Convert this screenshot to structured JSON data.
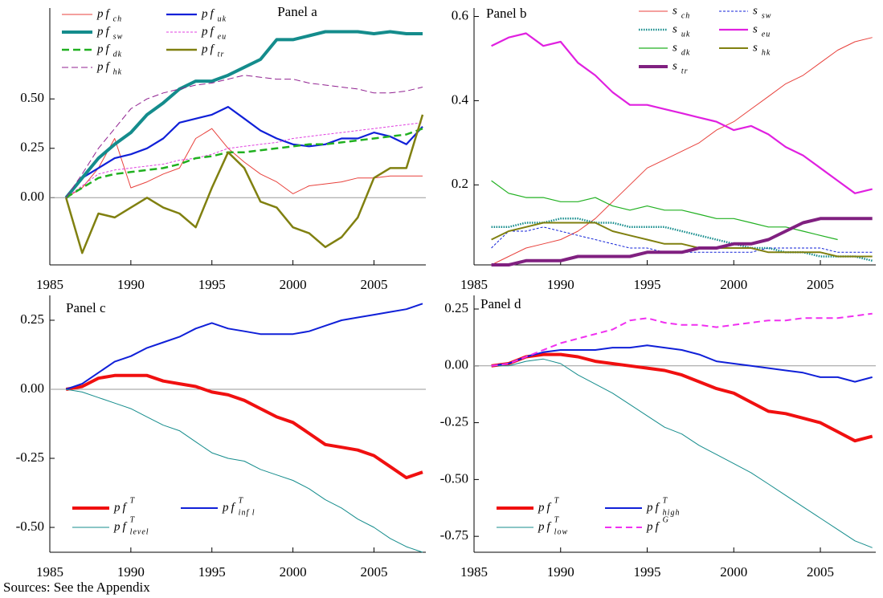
{
  "chart_data": [
    {
      "type": "line",
      "title": "Panel a",
      "legend": "upper left",
      "zero_line": true,
      "x": [
        1986,
        1987,
        1988,
        1989,
        1990,
        1991,
        1992,
        1993,
        1994,
        1995,
        1996,
        1997,
        1998,
        1999,
        2000,
        2001,
        2002,
        2003,
        2004,
        2005,
        2006,
        2007,
        2008
      ],
      "xlim": [
        1985,
        2008.2
      ],
      "xticks": [
        1985,
        1990,
        1995,
        2000,
        2005
      ],
      "ylim": [
        -0.34,
        0.96
      ],
      "yticks": [
        {
          "value": 0,
          "label": "0.00"
        },
        {
          "value": 0.25,
          "label": "0.25"
        },
        {
          "value": 0.5,
          "label": "0.50"
        }
      ],
      "series": [
        {
          "name": "pf",
          "sub": "ch",
          "color": "#e8413c",
          "width": 1,
          "dash": "none",
          "values": [
            0,
            0.05,
            0.15,
            0.3,
            0.05,
            0.08,
            0.12,
            0.15,
            0.3,
            0.35,
            0.25,
            0.18,
            0.12,
            0.08,
            0.02,
            0.06,
            0.07,
            0.08,
            0.1,
            0.1,
            0.11,
            0.11,
            0.11
          ]
        },
        {
          "name": "pf",
          "sub": "uk",
          "color": "#1020d8",
          "width": 2.2,
          "dash": "none",
          "values": [
            0,
            0.1,
            0.15,
            0.2,
            0.22,
            0.25,
            0.3,
            0.38,
            0.4,
            0.42,
            0.46,
            0.4,
            0.34,
            0.3,
            0.27,
            0.26,
            0.27,
            0.3,
            0.3,
            0.33,
            0.31,
            0.27,
            0.36
          ]
        },
        {
          "name": "pf",
          "sub": "sw",
          "color": "#148c8c",
          "width": 4,
          "dash": "none",
          "values": [
            0,
            0.1,
            0.2,
            0.27,
            0.33,
            0.42,
            0.48,
            0.55,
            0.59,
            0.59,
            0.62,
            0.66,
            0.7,
            0.8,
            0.8,
            0.82,
            0.84,
            0.84,
            0.84,
            0.83,
            0.84,
            0.83,
            0.83
          ]
        },
        {
          "name": "pf",
          "sub": "eu",
          "color": "#e040e0",
          "width": 1,
          "dash": "3 2",
          "values": [
            0,
            0.06,
            0.12,
            0.14,
            0.15,
            0.16,
            0.17,
            0.19,
            0.2,
            0.22,
            0.25,
            0.26,
            0.27,
            0.28,
            0.3,
            0.31,
            0.32,
            0.33,
            0.34,
            0.35,
            0.36,
            0.37,
            0.38
          ]
        },
        {
          "name": "pf",
          "sub": "dk",
          "color": "#20b020",
          "width": 2.5,
          "dash": "9 5",
          "values": [
            0,
            0.05,
            0.1,
            0.12,
            0.13,
            0.14,
            0.15,
            0.17,
            0.2,
            0.21,
            0.23,
            0.23,
            0.24,
            0.25,
            0.26,
            0.27,
            0.27,
            0.28,
            0.29,
            0.3,
            0.31,
            0.32,
            0.35
          ]
        },
        {
          "name": "pf",
          "sub": "tr",
          "color": "#808010",
          "width": 2.5,
          "dash": "none",
          "values": [
            0,
            -0.28,
            -0.08,
            -0.1,
            -0.05,
            0,
            -0.05,
            -0.08,
            -0.15,
            0.05,
            0.23,
            0.15,
            -0.02,
            -0.05,
            -0.15,
            -0.18,
            -0.25,
            -0.2,
            -0.1,
            0.1,
            0.15,
            0.15,
            0.42
          ]
        },
        {
          "name": "pf",
          "sub": "hk",
          "color": "#902090",
          "width": 1,
          "dash": "8 4",
          "values": [
            0,
            0.12,
            0.25,
            0.35,
            0.45,
            0.5,
            0.53,
            0.55,
            0.57,
            0.58,
            0.6,
            0.62,
            0.61,
            0.6,
            0.6,
            0.58,
            0.57,
            0.56,
            0.55,
            0.53,
            0.53,
            0.54,
            0.56
          ]
        }
      ]
    },
    {
      "type": "line",
      "title": "Panel b",
      "legend": "upper right",
      "zero_line": false,
      "x": [
        1986,
        1987,
        1988,
        1989,
        1990,
        1991,
        1992,
        1993,
        1994,
        1995,
        1996,
        1997,
        1998,
        1999,
        2000,
        2001,
        2002,
        2003,
        2004,
        2005,
        2006,
        2007,
        2008
      ],
      "xlim": [
        1985,
        2008.2
      ],
      "xticks": [
        1985,
        1990,
        1995,
        2000,
        2005
      ],
      "ylim": [
        0.01,
        0.62
      ],
      "yticks": [
        0.2,
        0.4,
        0.6
      ],
      "series": [
        {
          "name": "s",
          "sub": "ch",
          "color": "#e8413c",
          "width": 1,
          "dash": "none",
          "values": [
            0.01,
            0.03,
            0.05,
            0.06,
            0.07,
            0.09,
            0.12,
            0.16,
            0.2,
            0.24,
            0.26,
            0.28,
            0.3,
            0.33,
            0.35,
            0.38,
            0.41,
            0.44,
            0.46,
            0.49,
            0.52,
            0.54,
            0.55
          ]
        },
        {
          "name": "s",
          "sub": "sw",
          "color": "#1020d8",
          "width": 1,
          "dash": "3 2",
          "values": [
            0.05,
            0.09,
            0.09,
            0.1,
            0.09,
            0.08,
            0.07,
            0.06,
            0.05,
            0.05,
            0.04,
            0.04,
            0.04,
            0.04,
            0.04,
            0.04,
            0.05,
            0.05,
            0.05,
            0.05,
            0.04,
            0.04,
            0.04
          ]
        },
        {
          "name": "s",
          "sub": "uk",
          "color": "#148c8c",
          "width": 2.5,
          "dash": "1.5 1.5",
          "values": [
            0.1,
            0.1,
            0.11,
            0.11,
            0.12,
            0.12,
            0.11,
            0.11,
            0.1,
            0.1,
            0.1,
            0.09,
            0.08,
            0.07,
            0.06,
            0.05,
            0.05,
            0.04,
            0.04,
            0.03,
            0.03,
            0.03,
            0.02
          ]
        },
        {
          "name": "s",
          "sub": "eu",
          "color": "#e020e0",
          "width": 2.2,
          "dash": "none",
          "values": [
            0.53,
            0.55,
            0.56,
            0.53,
            0.54,
            0.49,
            0.46,
            0.42,
            0.39,
            0.39,
            0.38,
            0.37,
            0.36,
            0.35,
            0.33,
            0.34,
            0.32,
            0.29,
            0.27,
            0.24,
            0.21,
            0.18,
            0.19
          ]
        },
        {
          "name": "s",
          "sub": "dk",
          "color": "#20b020",
          "width": 1.2,
          "dash": "none",
          "values": [
            0.21,
            0.18,
            0.17,
            0.17,
            0.16,
            0.16,
            0.17,
            0.15,
            0.14,
            0.15,
            0.14,
            0.14,
            0.13,
            0.12,
            0.12,
            0.11,
            0.1,
            0.1,
            0.09,
            0.08,
            0.07,
            null,
            null
          ]
        },
        {
          "name": "s",
          "sub": "hk",
          "color": "#808010",
          "width": 2,
          "dash": "none",
          "values": [
            0.07,
            0.09,
            0.1,
            0.11,
            0.11,
            0.11,
            0.11,
            0.09,
            0.08,
            0.07,
            0.06,
            0.06,
            0.05,
            0.05,
            0.05,
            0.05,
            0.04,
            0.04,
            0.04,
            0.04,
            0.03,
            0.03,
            0.03
          ]
        },
        {
          "name": "s",
          "sub": "tr",
          "color": "#802080",
          "width": 4,
          "dash": "none",
          "values": [
            0.01,
            0.01,
            0.02,
            0.02,
            0.02,
            0.03,
            0.03,
            0.03,
            0.03,
            0.04,
            0.04,
            0.04,
            0.05,
            0.05,
            0.06,
            0.06,
            0.07,
            0.09,
            0.11,
            0.12,
            0.12,
            0.12,
            0.12
          ]
        }
      ]
    },
    {
      "type": "line",
      "title": "Panel c",
      "legend": "lower left",
      "zero_line": true,
      "x": [
        1986,
        1987,
        1988,
        1989,
        1990,
        1991,
        1992,
        1993,
        1994,
        1995,
        1996,
        1997,
        1998,
        1999,
        2000,
        2001,
        2002,
        2003,
        2004,
        2005,
        2006,
        2007,
        2008
      ],
      "xlim": [
        1985,
        2008.2
      ],
      "xticks": [
        1985,
        1990,
        1995,
        2000,
        2005
      ],
      "ylim": [
        -0.59,
        0.34
      ],
      "yticks": [
        {
          "value": -0.5,
          "label": "-0.50"
        },
        {
          "value": -0.25,
          "label": "-0.25"
        },
        {
          "value": 0,
          "label": "0.00"
        },
        {
          "value": 0.25,
          "label": "0.25"
        }
      ],
      "series": [
        {
          "name": "pf",
          "sup": "T",
          "color": "#f01010",
          "width": 4,
          "dash": "none",
          "values": [
            0,
            0.01,
            0.04,
            0.05,
            0.05,
            0.05,
            0.03,
            0.02,
            0.01,
            -0.01,
            -0.02,
            -0.04,
            -0.07,
            -0.1,
            -0.12,
            -0.16,
            -0.2,
            -0.21,
            -0.22,
            -0.24,
            -0.28,
            -0.32,
            -0.3
          ]
        },
        {
          "name": "pf",
          "sup": "T",
          "sub": "inf l",
          "color": "#1020d8",
          "width": 2,
          "dash": "none",
          "values": [
            0,
            0.02,
            0.06,
            0.1,
            0.12,
            0.15,
            0.17,
            0.19,
            0.22,
            0.24,
            0.22,
            0.21,
            0.2,
            0.2,
            0.2,
            0.21,
            0.23,
            0.25,
            0.26,
            0.27,
            0.28,
            0.29,
            0.31
          ]
        },
        {
          "name": "pf",
          "sup": "T",
          "sub": "level",
          "color": "#148c8c",
          "width": 1,
          "dash": "none",
          "values": [
            0,
            -0.01,
            -0.03,
            -0.05,
            -0.07,
            -0.1,
            -0.13,
            -0.15,
            -0.19,
            -0.23,
            -0.25,
            -0.26,
            -0.29,
            -0.31,
            -0.33,
            -0.36,
            -0.4,
            -0.43,
            -0.47,
            -0.5,
            -0.54,
            -0.57,
            -0.59
          ]
        }
      ]
    },
    {
      "type": "line",
      "title": "Panel d",
      "legend": "lower left",
      "zero_line": true,
      "x": [
        1986,
        1987,
        1988,
        1989,
        1990,
        1991,
        1992,
        1993,
        1994,
        1995,
        1996,
        1997,
        1998,
        1999,
        2000,
        2001,
        2002,
        2003,
        2004,
        2005,
        2006,
        2007,
        2008
      ],
      "xlim": [
        1985,
        2008.2
      ],
      "xticks": [
        1985,
        1990,
        1995,
        2000,
        2005
      ],
      "ylim": [
        -0.82,
        0.31
      ],
      "yticks": [
        {
          "value": -0.75,
          "label": "-0.75"
        },
        {
          "value": -0.5,
          "label": "-0.50"
        },
        {
          "value": -0.25,
          "label": "-0.25"
        },
        {
          "value": 0,
          "label": "0.00"
        },
        {
          "value": 0.25,
          "label": "0.25"
        }
      ],
      "series": [
        {
          "name": "pf",
          "sup": "T",
          "color": "#f01010",
          "width": 4,
          "dash": "none",
          "values": [
            0,
            0.01,
            0.04,
            0.05,
            0.05,
            0.04,
            0.02,
            0.01,
            0,
            -0.01,
            -0.02,
            -0.04,
            -0.07,
            -0.1,
            -0.12,
            -0.16,
            -0.2,
            -0.21,
            -0.23,
            -0.25,
            -0.29,
            -0.33,
            -0.31
          ]
        },
        {
          "name": "pf",
          "sup": "T",
          "sub": "high",
          "color": "#1020d8",
          "width": 2,
          "dash": "none",
          "values": [
            0,
            0.01,
            0.04,
            0.06,
            0.07,
            0.07,
            0.07,
            0.08,
            0.08,
            0.09,
            0.08,
            0.07,
            0.05,
            0.02,
            0.01,
            0,
            -0.01,
            -0.02,
            -0.03,
            -0.05,
            -0.05,
            -0.07,
            -0.05
          ]
        },
        {
          "name": "pf",
          "sup": "T",
          "sub": "low",
          "color": "#148c8c",
          "width": 1,
          "dash": "none",
          "values": [
            0,
            0,
            0.02,
            0.03,
            0.01,
            -0.04,
            -0.08,
            -0.12,
            -0.17,
            -0.22,
            -0.27,
            -0.3,
            -0.35,
            -0.39,
            -0.43,
            -0.47,
            -0.52,
            -0.57,
            -0.62,
            -0.67,
            -0.72,
            -0.77,
            -0.8
          ]
        },
        {
          "name": "pf",
          "sup": "G",
          "color": "#f030f0",
          "width": 2,
          "dash": "8 5",
          "values": [
            0,
            0.01,
            0.04,
            0.07,
            0.1,
            0.12,
            0.14,
            0.16,
            0.2,
            0.21,
            0.19,
            0.18,
            0.18,
            0.17,
            0.18,
            0.19,
            0.2,
            0.2,
            0.21,
            0.21,
            0.21,
            0.22,
            0.23
          ]
        }
      ]
    }
  ],
  "source": "Sources: See the Appendix"
}
